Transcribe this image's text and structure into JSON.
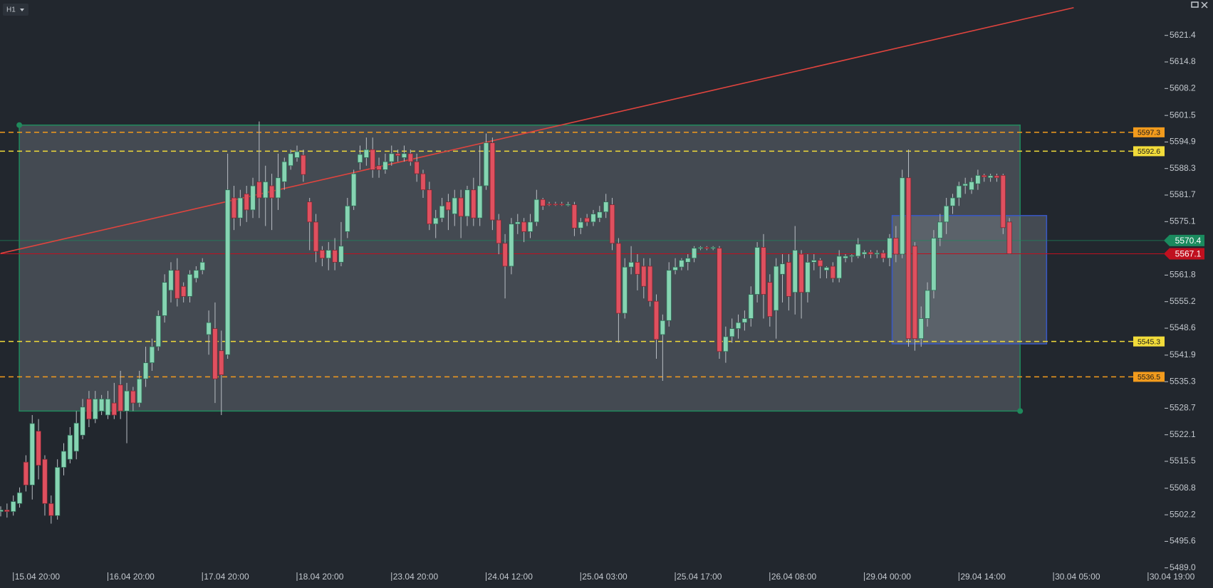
{
  "timeframe": "H1",
  "chart_data": {
    "type": "candlestick",
    "colors": {
      "up": "#86d4b2",
      "down": "#e0505f",
      "wick": "#b9bec4"
    },
    "xlim": [
      0,
      184.5
    ],
    "ylim": [
      5488.6,
      5630.2
    ],
    "xticks": [
      {
        "value": 2,
        "label": "15.04 20:00"
      },
      {
        "value": 17,
        "label": "16.04 20:00"
      },
      {
        "value": 32,
        "label": "17.04 20:00"
      },
      {
        "value": 47,
        "label": "18.04 20:00"
      },
      {
        "value": 62,
        "label": "23.04 20:00"
      },
      {
        "value": 77,
        "label": "24.04 12:00"
      },
      {
        "value": 92,
        "label": "25.04 03:00"
      },
      {
        "value": 107,
        "label": "25.04 17:00"
      },
      {
        "value": 122,
        "label": "26.04 08:00"
      },
      {
        "value": 137,
        "label": "29.04 00:00"
      },
      {
        "value": 152,
        "label": "29.04 14:00"
      },
      {
        "value": 167,
        "label": "30.04 05:00"
      },
      {
        "value": 182,
        "label": "30.04 19:00"
      }
    ],
    "yticks": [
      5621.4,
      5614.8,
      5608.2,
      5601.5,
      5594.9,
      5588.3,
      5581.7,
      5575.1,
      5561.8,
      5555.2,
      5548.6,
      5541.9,
      5535.3,
      5528.7,
      5522.1,
      5515.5,
      5508.8,
      5502.2,
      5495.6,
      {
        "value": 5489.0,
        "label": "5489.0"
      }
    ],
    "open": [
      5503.0,
      5503.4,
      5503,
      5505,
      5515.3,
      5509.6,
      5523,
      5516,
      5505,
      5502,
      5514,
      5516,
      5518,
      5522,
      5531,
      5526,
      5528,
      5527,
      5530,
      5534.5,
      5528,
      5533,
      5530,
      5536,
      5540,
      5544,
      5551.7,
      5558,
      5563,
      5559,
      5556.5,
      5561,
      5563,
      5547,
      5548.5,
      5543,
      5542,
      5581,
      5576,
      5582,
      5578,
      5585,
      5581,
      5584,
      5581,
      5585,
      5589,
      5591,
      5591.6,
      5580,
      5575,
      5568,
      5566,
      5568,
      5565,
      5572.6,
      5579,
      5589.8,
      5591,
      5593,
      5589,
      5588,
      5590,
      5592,
      5591,
      5592,
      5590,
      5587,
      5583,
      5574.5,
      5576,
      5580,
      5577,
      5581,
      5576.4,
      5583,
      5576,
      5584,
      5594.7,
      5575.5,
      5569.7,
      5564,
      5574.5,
      5575,
      5572.6,
      5575,
      5580.6,
      5579.5,
      5579.5,
      5579.5,
      5579.3,
      5579.3,
      5573.5,
      5576,
      5575,
      5576,
      5577.5,
      5579.3,
      5569.7,
      5552.3,
      5563.8,
      5565,
      5564,
      5564,
      5555.3,
      5547,
      5550.5,
      5563,
      5563.8,
      5565,
      5566,
      5568.5,
      5568.7,
      5568.5,
      5568.5,
      5542.8,
      5546.5,
      5548.5,
      5550,
      5551,
      5557,
      5568.7,
      5560,
      5553,
      5562,
      5565,
      5557.5,
      5567,
      5557.5,
      5565,
      5565.5,
      5563,
      5564,
      5561,
      5566,
      5566.5,
      5566.5,
      5567,
      5567.5,
      5567,
      5567.3,
      5566,
      5571,
      5567,
      5586,
      5569,
      5546,
      5551,
      5558,
      5571,
      5575,
      5579,
      5581,
      5584,
      5583,
      5584.5,
      5586.6,
      5586,
      5586.5,
      5586.6,
      5575
    ],
    "high": [
      5504.3,
      5505,
      5507,
      5509,
      5517,
      5527,
      5526,
      5517,
      5507,
      5516,
      5520,
      5524,
      5528,
      5531,
      5533,
      5533,
      5532,
      5533,
      5535,
      5538,
      5535,
      5534,
      5538,
      5544,
      5546,
      5553,
      5562,
      5565,
      5566,
      5560,
      5563,
      5564,
      5566,
      5553,
      5555,
      5548,
      5592,
      5584,
      5583,
      5584,
      5586,
      5600,
      5589,
      5587,
      5592,
      5591,
      5593,
      5594,
      5593,
      5581,
      5577,
      5569,
      5570,
      5571,
      5575,
      5581,
      5588,
      5594,
      5596,
      5596,
      5591,
      5592,
      5594,
      5593,
      5594,
      5593,
      5592,
      5588,
      5585,
      5578,
      5581,
      5582,
      5583,
      5583,
      5584,
      5586,
      5594,
      5597,
      5596,
      5577,
      5572,
      5576,
      5577,
      5576,
      5577,
      5583,
      5581,
      5580,
      5580,
      5580,
      5580,
      5580,
      5576,
      5577,
      5578,
      5579,
      5582,
      5581,
      5571,
      5566,
      5569,
      5567,
      5566,
      5566,
      5557,
      5552,
      5565,
      5566,
      5566,
      5567,
      5569,
      5569,
      5569,
      5569,
      5569,
      5549,
      5551,
      5552,
      5553,
      5559,
      5570,
      5572,
      5562,
      5566,
      5567,
      5567,
      5574,
      5568,
      5567,
      5567,
      5566,
      5564,
      5565,
      5568,
      5567,
      5567,
      5571,
      5568,
      5568,
      5568,
      5568,
      5572,
      5574,
      5588,
      5593,
      5570,
      5554,
      5560,
      5573,
      5577,
      5581,
      5582,
      5585,
      5586,
      5586,
      5588,
      5587,
      5587,
      5587,
      5587,
      5576
    ],
    "low": [
      5501.8,
      5501.5,
      5502,
      5504,
      5508,
      5506,
      5511,
      5502,
      5500,
      5501,
      5512,
      5515,
      5516,
      5521,
      5524,
      5525,
      5527,
      5526,
      5526,
      5526,
      5520,
      5528,
      5529,
      5534,
      5538,
      5543,
      5550,
      5555,
      5554,
      5555,
      5555,
      5560,
      5562,
      5542,
      5530,
      5527,
      5541,
      5573,
      5574,
      5575,
      5576,
      5576,
      5574,
      5573,
      5578,
      5583,
      5588,
      5590,
      5585,
      5568,
      5565,
      5564,
      5563,
      5563,
      5564,
      5571,
      5578,
      5588,
      5589,
      5586,
      5586,
      5587,
      5589,
      5590,
      5590,
      5589,
      5585,
      5581,
      5573,
      5571,
      5575,
      5573,
      5574,
      5571,
      5574,
      5574,
      5574,
      5583,
      5573,
      5567,
      5556,
      5562,
      5572,
      5570,
      5571,
      5574,
      5578,
      5579,
      5579,
      5579,
      5578.9,
      5571.5,
      5572,
      5574,
      5574,
      5575,
      5576,
      5568,
      5545,
      5551,
      5562,
      5558,
      5556,
      5554,
      5541,
      5535.5,
      5549,
      5562,
      5563,
      5563,
      5565,
      5568,
      5568,
      5568,
      5541,
      5540,
      5545,
      5546,
      5548,
      5549,
      5555,
      5551,
      5549,
      5546,
      5555,
      5553,
      5552,
      5551,
      5555,
      5563,
      5561,
      5561,
      5560,
      5560,
      5565,
      5565,
      5566,
      5566,
      5566,
      5566,
      5565,
      5564,
      5565,
      5566,
      5544,
      5543,
      5544,
      5549,
      5556,
      5569,
      5572,
      5577,
      5579,
      5582,
      5582,
      5583,
      5585,
      5585,
      5585,
      5572,
      5567
    ],
    "close": [
      5503.4,
      5503.0,
      5505.5,
      5507.7,
      5509.6,
      5524.9,
      5514.5,
      5505,
      5502,
      5514,
      5518,
      5522,
      5525,
      5529,
      5526,
      5531,
      5531,
      5531,
      5527,
      5528,
      5533,
      5530,
      5536,
      5540,
      5544,
      5551.7,
      5560,
      5563,
      5556,
      5556.5,
      5562,
      5563,
      5565,
      5550,
      5536,
      5537,
      5583,
      5576,
      5581,
      5578,
      5584,
      5581,
      5585,
      5581,
      5586,
      5590,
      5592,
      5592.5,
      5586.8,
      5575,
      5567.7,
      5566,
      5568,
      5565,
      5569,
      5579,
      5587,
      5591.8,
      5593,
      5588,
      5588,
      5590,
      5592,
      5591.5,
      5592,
      5590,
      5587,
      5583,
      5574.5,
      5576,
      5579,
      5578,
      5581,
      5576.4,
      5583,
      5576,
      5584,
      5594.7,
      5575.5,
      5569.7,
      5564,
      5574.5,
      5575,
      5572.6,
      5575,
      5580.6,
      5579,
      5579.3,
      5579.3,
      5579.3,
      5579.4,
      5573.5,
      5575,
      5575,
      5577,
      5577.5,
      5580,
      5569.7,
      5552.3,
      5563.8,
      5565,
      5562,
      5559,
      5555.3,
      5545.8,
      5550.5,
      5563,
      5563.8,
      5565.5,
      5566,
      5568.5,
      5568.7,
      5568.5,
      5568.7,
      5542.8,
      5546.5,
      5548.5,
      5550,
      5551,
      5557,
      5568.7,
      5557,
      5551.5,
      5564,
      5564.6,
      5556.5,
      5568,
      5557.5,
      5565,
      5565.5,
      5564,
      5563.7,
      5561,
      5566.5,
      5566.5,
      5566.7,
      5569.5,
      5567.5,
      5567,
      5567.3,
      5566,
      5571,
      5567,
      5586,
      5546,
      5546,
      5551,
      5558,
      5571,
      5575,
      5579,
      5581,
      5584,
      5584.5,
      5585,
      5586.6,
      5586.2,
      5586.5,
      5586,
      5573.6,
      5567.1
    ],
    "rectangles": [
      {
        "x": [
          2.95,
          161.7
        ],
        "y": [
          5528.0,
          5599.1
        ],
        "color": "#1f8a5c"
      },
      {
        "x": [
          141.4,
          165.9
        ],
        "y": [
          5544.7,
          5576.6
        ],
        "color": "#3858c8"
      }
    ],
    "trendlines": [
      {
        "x": [
          0,
          170.2
        ],
        "y": [
          5567.2,
          5628.3
        ],
        "color": "#e0443e"
      }
    ],
    "levels": [
      {
        "value": 5597.3,
        "color": "#f29b1d"
      },
      {
        "value": 5592.6,
        "color": "#f2dc3a"
      },
      {
        "value": 5545.3,
        "color": "#f2dc3a"
      },
      {
        "value": 5536.5,
        "color": "#f29b1d"
      }
    ],
    "price_tags": [
      {
        "value": 5570.4,
        "color": "#1a8a5e"
      },
      {
        "value": 5567.1,
        "color": "#c0101f"
      }
    ]
  }
}
